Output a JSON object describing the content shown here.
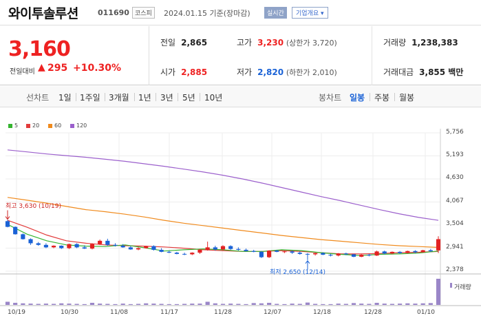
{
  "header": {
    "name": "와이투솔루션",
    "code": "011690",
    "market": "코스피",
    "date": "2024.01.15 기준(장마감)",
    "realtime": "실시간",
    "company_button": "기업개요 ▾"
  },
  "summary": {
    "price": "3,160",
    "change_label": "전일대비",
    "change_arrow": "▲",
    "change": "295",
    "change_pct": "+10.30%",
    "prev_label": "전일",
    "prev": "2,865",
    "open_label": "시가",
    "open": "2,885",
    "high_label": "고가",
    "high": "3,230",
    "upper_limit": "(상한가 3,720)",
    "low_label": "저가",
    "low": "2,820",
    "lower_limit": "(하한가 2,010)",
    "volume_label": "거래량",
    "volume": "1,238,383",
    "amount_label": "거래대금",
    "amount": "3,855 백만"
  },
  "tabs": {
    "line_title": "선차트",
    "line_items": [
      "1일",
      "1주일",
      "3개월",
      "1년",
      "3년",
      "5년",
      "10년"
    ],
    "candle_title": "봉차트",
    "candle_items": [
      "일봉",
      "주봉",
      "월봉"
    ],
    "active_candle": "일봉"
  },
  "colors": {
    "up": "#e22222",
    "down": "#1a62d6",
    "ma5": "#35b42f",
    "ma20": "#e23b3b",
    "ma60": "#f08a1c",
    "ma120": "#9b5fcc",
    "volume": "#9a86c8"
  },
  "chart_data": {
    "type": "candlestick",
    "legend": [
      "5",
      "20",
      "60",
      "120"
    ],
    "yticks": [
      "5,756",
      "5,193",
      "4,630",
      "4,067",
      "3,504",
      "2,941",
      "2,378"
    ],
    "ylim": [
      2378,
      5756
    ],
    "xticks": [
      "10/19",
      "10/30",
      "11/08",
      "11/17",
      "11/28",
      "12/07",
      "12/18",
      "12/28",
      "01/10"
    ],
    "volume_label": "거래량",
    "high_note": "최고 3,630 (10/19)",
    "low_note": "최저 2,650 (12/14)",
    "ma120": [
      5340,
      5290,
      5240,
      5200,
      5160,
      5110,
      5060,
      5000,
      4940,
      4870,
      4800,
      4720,
      4630,
      4530,
      4420,
      4310,
      4200,
      4100,
      3990,
      3880,
      3780,
      3690,
      3620
    ],
    "ma60": [
      4180,
      4110,
      4040,
      3960,
      3880,
      3830,
      3770,
      3700,
      3620,
      3550,
      3490,
      3430,
      3370,
      3310,
      3250,
      3200,
      3150,
      3110,
      3070,
      3030,
      3000,
      2980,
      2960
    ],
    "ma20": [
      3620,
      3450,
      3260,
      3120,
      3060,
      3020,
      3000,
      2990,
      2970,
      2940,
      2900,
      2880,
      2860,
      2860,
      2880,
      2860,
      2830,
      2800,
      2800,
      2810,
      2830,
      2840,
      2860
    ],
    "ma5": [
      3520,
      3280,
      3120,
      3020,
      2990,
      2980,
      3020,
      2950,
      2870,
      2900,
      2920,
      2900,
      2860,
      2860,
      2900,
      2880,
      2830,
      2790,
      2760,
      2790,
      2800,
      2820,
      2870
    ],
    "candles": [
      {
        "o": 3600,
        "h": 3630,
        "l": 3450,
        "c": 3460
      },
      {
        "o": 3460,
        "h": 3470,
        "l": 3270,
        "c": 3280
      },
      {
        "o": 3280,
        "h": 3300,
        "l": 3150,
        "c": 3160
      },
      {
        "o": 3160,
        "h": 3180,
        "l": 3020,
        "c": 3060
      },
      {
        "o": 3060,
        "h": 3090,
        "l": 3000,
        "c": 3020
      },
      {
        "o": 3020,
        "h": 3060,
        "l": 2940,
        "c": 2960
      },
      {
        "o": 2960,
        "h": 3010,
        "l": 2940,
        "c": 3000
      },
      {
        "o": 3000,
        "h": 3010,
        "l": 2920,
        "c": 2940
      },
      {
        "o": 2940,
        "h": 3050,
        "l": 2920,
        "c": 3040
      },
      {
        "o": 3040,
        "h": 3060,
        "l": 2940,
        "c": 2960
      },
      {
        "o": 2960,
        "h": 3010,
        "l": 2920,
        "c": 2930
      },
      {
        "o": 2930,
        "h": 3060,
        "l": 2910,
        "c": 3040
      },
      {
        "o": 3040,
        "h": 3150,
        "l": 3020,
        "c": 3120
      },
      {
        "o": 3120,
        "h": 3170,
        "l": 3000,
        "c": 3020
      },
      {
        "o": 3020,
        "h": 3060,
        "l": 2980,
        "c": 3000
      },
      {
        "o": 3000,
        "h": 3040,
        "l": 2950,
        "c": 2960
      },
      {
        "o": 2960,
        "h": 2990,
        "l": 2900,
        "c": 2910
      },
      {
        "o": 2910,
        "h": 2960,
        "l": 2890,
        "c": 2940
      },
      {
        "o": 2940,
        "h": 3000,
        "l": 2930,
        "c": 2990
      },
      {
        "o": 2990,
        "h": 3010,
        "l": 2880,
        "c": 2900
      },
      {
        "o": 2900,
        "h": 2940,
        "l": 2840,
        "c": 2850
      },
      {
        "o": 2850,
        "h": 2880,
        "l": 2820,
        "c": 2830
      },
      {
        "o": 2830,
        "h": 2850,
        "l": 2790,
        "c": 2800
      },
      {
        "o": 2800,
        "h": 2830,
        "l": 2770,
        "c": 2790
      },
      {
        "o": 2790,
        "h": 2840,
        "l": 2770,
        "c": 2830
      },
      {
        "o": 2830,
        "h": 2920,
        "l": 2800,
        "c": 2900
      },
      {
        "o": 2900,
        "h": 3100,
        "l": 2880,
        "c": 2960
      },
      {
        "o": 2960,
        "h": 3000,
        "l": 2880,
        "c": 2910
      },
      {
        "o": 2910,
        "h": 3010,
        "l": 2890,
        "c": 2990
      },
      {
        "o": 2990,
        "h": 3010,
        "l": 2900,
        "c": 2920
      },
      {
        "o": 2920,
        "h": 2960,
        "l": 2880,
        "c": 2900
      },
      {
        "o": 2900,
        "h": 2930,
        "l": 2860,
        "c": 2870
      },
      {
        "o": 2870,
        "h": 2900,
        "l": 2840,
        "c": 2850
      },
      {
        "o": 2850,
        "h": 2870,
        "l": 2700,
        "c": 2720
      },
      {
        "o": 2720,
        "h": 2890,
        "l": 2700,
        "c": 2880
      },
      {
        "o": 2880,
        "h": 2900,
        "l": 2840,
        "c": 2850
      },
      {
        "o": 2850,
        "h": 2880,
        "l": 2820,
        "c": 2860
      },
      {
        "o": 2860,
        "h": 2880,
        "l": 2800,
        "c": 2830
      },
      {
        "o": 2830,
        "h": 2860,
        "l": 2780,
        "c": 2800
      },
      {
        "o": 2800,
        "h": 2820,
        "l": 2650,
        "c": 2790
      },
      {
        "o": 2790,
        "h": 2830,
        "l": 2760,
        "c": 2820
      },
      {
        "o": 2820,
        "h": 2840,
        "l": 2770,
        "c": 2780
      },
      {
        "o": 2780,
        "h": 2800,
        "l": 2740,
        "c": 2760
      },
      {
        "o": 2760,
        "h": 2820,
        "l": 2740,
        "c": 2810
      },
      {
        "o": 2810,
        "h": 2830,
        "l": 2770,
        "c": 2790
      },
      {
        "o": 2790,
        "h": 2800,
        "l": 2720,
        "c": 2730
      },
      {
        "o": 2730,
        "h": 2790,
        "l": 2720,
        "c": 2780
      },
      {
        "o": 2780,
        "h": 2800,
        "l": 2740,
        "c": 2760
      },
      {
        "o": 2760,
        "h": 2880,
        "l": 2750,
        "c": 2860
      },
      {
        "o": 2860,
        "h": 2880,
        "l": 2790,
        "c": 2810
      },
      {
        "o": 2810,
        "h": 2860,
        "l": 2790,
        "c": 2850
      },
      {
        "o": 2850,
        "h": 2870,
        "l": 2800,
        "c": 2820
      },
      {
        "o": 2820,
        "h": 2880,
        "l": 2810,
        "c": 2870
      },
      {
        "o": 2870,
        "h": 2890,
        "l": 2820,
        "c": 2840
      },
      {
        "o": 2840,
        "h": 2900,
        "l": 2830,
        "c": 2890
      },
      {
        "o": 2890,
        "h": 2920,
        "l": 2850,
        "c": 2865
      },
      {
        "o": 2885,
        "h": 3230,
        "l": 2820,
        "c": 3160
      }
    ],
    "volumes": [
      0.12,
      0.08,
      0.06,
      0.05,
      0.04,
      0.05,
      0.04,
      0.06,
      0.05,
      0.04,
      0.03,
      0.08,
      0.05,
      0.04,
      0.03,
      0.05,
      0.03,
      0.04,
      0.06,
      0.05,
      0.04,
      0.03,
      0.03,
      0.04,
      0.05,
      0.05,
      0.12,
      0.06,
      0.04,
      0.05,
      0.04,
      0.03,
      0.07,
      0.06,
      0.08,
      0.04,
      0.03,
      0.05,
      0.04,
      0.09,
      0.04,
      0.03,
      0.03,
      0.05,
      0.04,
      0.07,
      0.05,
      0.04,
      0.08,
      0.05,
      0.04,
      0.05,
      0.06,
      0.05,
      0.06,
      0.07,
      1.0
    ]
  }
}
